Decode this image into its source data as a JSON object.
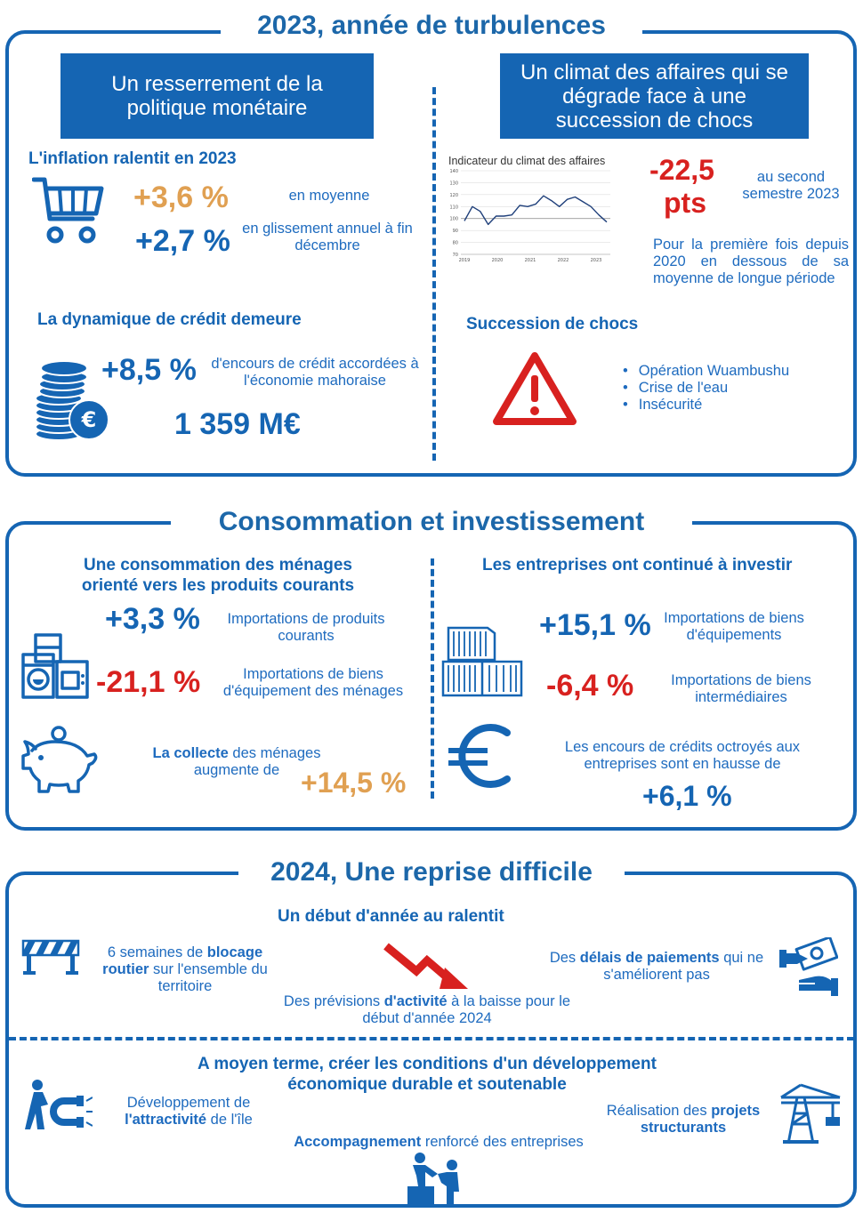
{
  "section1": {
    "title": "2023, année de turbulences",
    "left_banner": "Un resserrement de la politique monétaire",
    "right_banner": "Un climat des affaires qui se dégrade face à une succession de chocs",
    "inflation": {
      "heading": "L'inflation ralentit en 2023",
      "avg_value": "+3,6 %",
      "avg_label": "en moyenne",
      "yoy_value": "+2,7 %",
      "yoy_label": "en glissement annuel à fin décembre"
    },
    "credit": {
      "heading": "La dynamique de crédit demeure",
      "value": "+8,5 %",
      "label": "d'encours de crédit accordées à l'économie mahoraise",
      "amount": "1 359 M€"
    },
    "climate": {
      "chart_title": "Indicateur du climat des affaires",
      "drop_value": "-22,5",
      "drop_unit": "pts",
      "drop_label": "au second semestre 2023",
      "note": "Pour la première fois depuis 2020 en dessous de sa moyenne de longue période"
    },
    "shocks": {
      "heading": "Succession de chocs",
      "items": [
        "Opération Wuambushu",
        "Crise de l'eau",
        "Insécurité"
      ]
    }
  },
  "section2": {
    "title": "Consommation et investissement",
    "households": {
      "heading": "Une consommation des ménages orienté vers les produits courants",
      "v1": "+3,3 %",
      "l1": "Importations de produits courants",
      "v2": "-21,1 %",
      "l2": "Importations de biens d'équipement des ménages",
      "savings_bold": "La collecte",
      "savings_rest": " des ménages augmente de",
      "savings_value": "+14,5 %"
    },
    "companies": {
      "heading": "Les entreprises ont continué à investir",
      "v1": "+15,1 %",
      "l1": "Importations de biens d'équipements",
      "v2": "-6,4 %",
      "l2": "Importations de biens intermédiaires",
      "loans_label": "Les encours de crédits octroyés aux entreprises sont en hausse de",
      "loans_value": "+6,1 %"
    }
  },
  "section3": {
    "title": "2024, Une reprise difficile",
    "subheading": "Un début d'année au ralentit",
    "blockade_pre": "6 semaines de ",
    "blockade_bold": "blocage routier",
    "blockade_post": " sur l'ensemble du territoire",
    "forecast_pre": "Des prévisions ",
    "forecast_bold": "d'activité",
    "forecast_post": " à la baisse pour le début d'année  2024",
    "payments_pre": "Des ",
    "payments_bold": "délais de paiements",
    "payments_post": " qui ne s'améliorent pas",
    "midterm_heading": "A moyen terme, créer les conditions d'un développement économique durable et soutenable",
    "attract_pre": "Développement de ",
    "attract_bold": "l'attractivité",
    "attract_post": " de l'île",
    "support_bold": "Accompagnement",
    "support_post": " renforcé des entreprises",
    "projects_pre": "Réalisation des ",
    "projects_bold": "projets structurants"
  },
  "chart_data": {
    "type": "line",
    "title": "Indicateur du climat des affaires",
    "x_tick_labels": [
      "2019",
      "2020",
      "2021",
      "2022",
      "2023"
    ],
    "y_tick_labels": [
      "70",
      "80",
      "90",
      "100",
      "110",
      "120",
      "130",
      "140"
    ],
    "ylim": [
      70,
      140
    ],
    "series": [
      {
        "values": [
          98,
          110,
          106,
          95,
          102,
          102,
          103,
          111,
          110,
          112,
          119,
          115,
          110,
          116,
          118,
          114,
          110,
          103,
          97
        ]
      }
    ],
    "colors": {
      "line": "#1f3f7a",
      "mean_line": "#888888"
    },
    "grid": true
  },
  "colors": {
    "brand_blue": "#1565b3",
    "orange": "#e0a052",
    "red": "#d8211f"
  }
}
